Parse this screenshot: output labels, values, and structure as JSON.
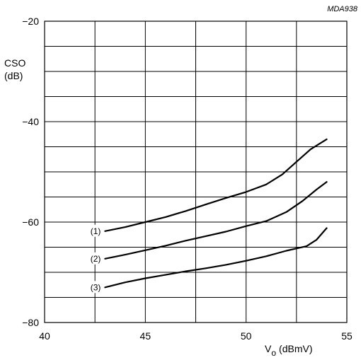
{
  "figure_id": "MDA938",
  "chart_data": {
    "type": "line",
    "title": "",
    "ylabel_line1": "CSO",
    "ylabel_line2": "(dB)",
    "xlabel_main": "V",
    "xlabel_sub": "o",
    "xlabel_unit": "(dBmV)",
    "xlim": [
      40,
      55
    ],
    "ylim": [
      -80,
      -20
    ],
    "x_ticks": [
      40,
      45,
      50,
      55
    ],
    "x_tick_labels": [
      "40",
      "45",
      "50",
      "55"
    ],
    "y_ticks": [
      -20,
      -40,
      -60,
      -80
    ],
    "y_tick_labels": [
      "−20",
      "−40",
      "−60",
      "−80"
    ],
    "grid": true,
    "x_grid_step": 2.5,
    "y_grid_step": 5,
    "series": [
      {
        "name": "(1)",
        "x": [
          43,
          44,
          45,
          46,
          47,
          48,
          49,
          50,
          51,
          51.8,
          52.5,
          53.2,
          54
        ],
        "y": [
          -61.8,
          -61.0,
          -60.0,
          -59.0,
          -57.8,
          -56.5,
          -55.2,
          -54.0,
          -52.5,
          -50.5,
          -48.0,
          -45.5,
          -43.5
        ]
      },
      {
        "name": "(2)",
        "x": [
          43,
          44,
          45,
          46,
          47,
          48,
          49,
          50,
          51,
          52,
          52.8,
          53.5,
          54
        ],
        "y": [
          -67.3,
          -66.5,
          -65.6,
          -64.7,
          -63.7,
          -62.8,
          -61.9,
          -60.8,
          -59.8,
          -58.0,
          -55.8,
          -53.5,
          -52.0
        ]
      },
      {
        "name": "(3)",
        "x": [
          43,
          44,
          45,
          46,
          47,
          48,
          49,
          50,
          51,
          52,
          53,
          53.5,
          54
        ],
        "y": [
          -73.0,
          -72.0,
          -71.2,
          -70.5,
          -69.8,
          -69.2,
          -68.5,
          -67.7,
          -66.8,
          -65.7,
          -64.8,
          -63.5,
          -61.2
        ]
      }
    ]
  }
}
